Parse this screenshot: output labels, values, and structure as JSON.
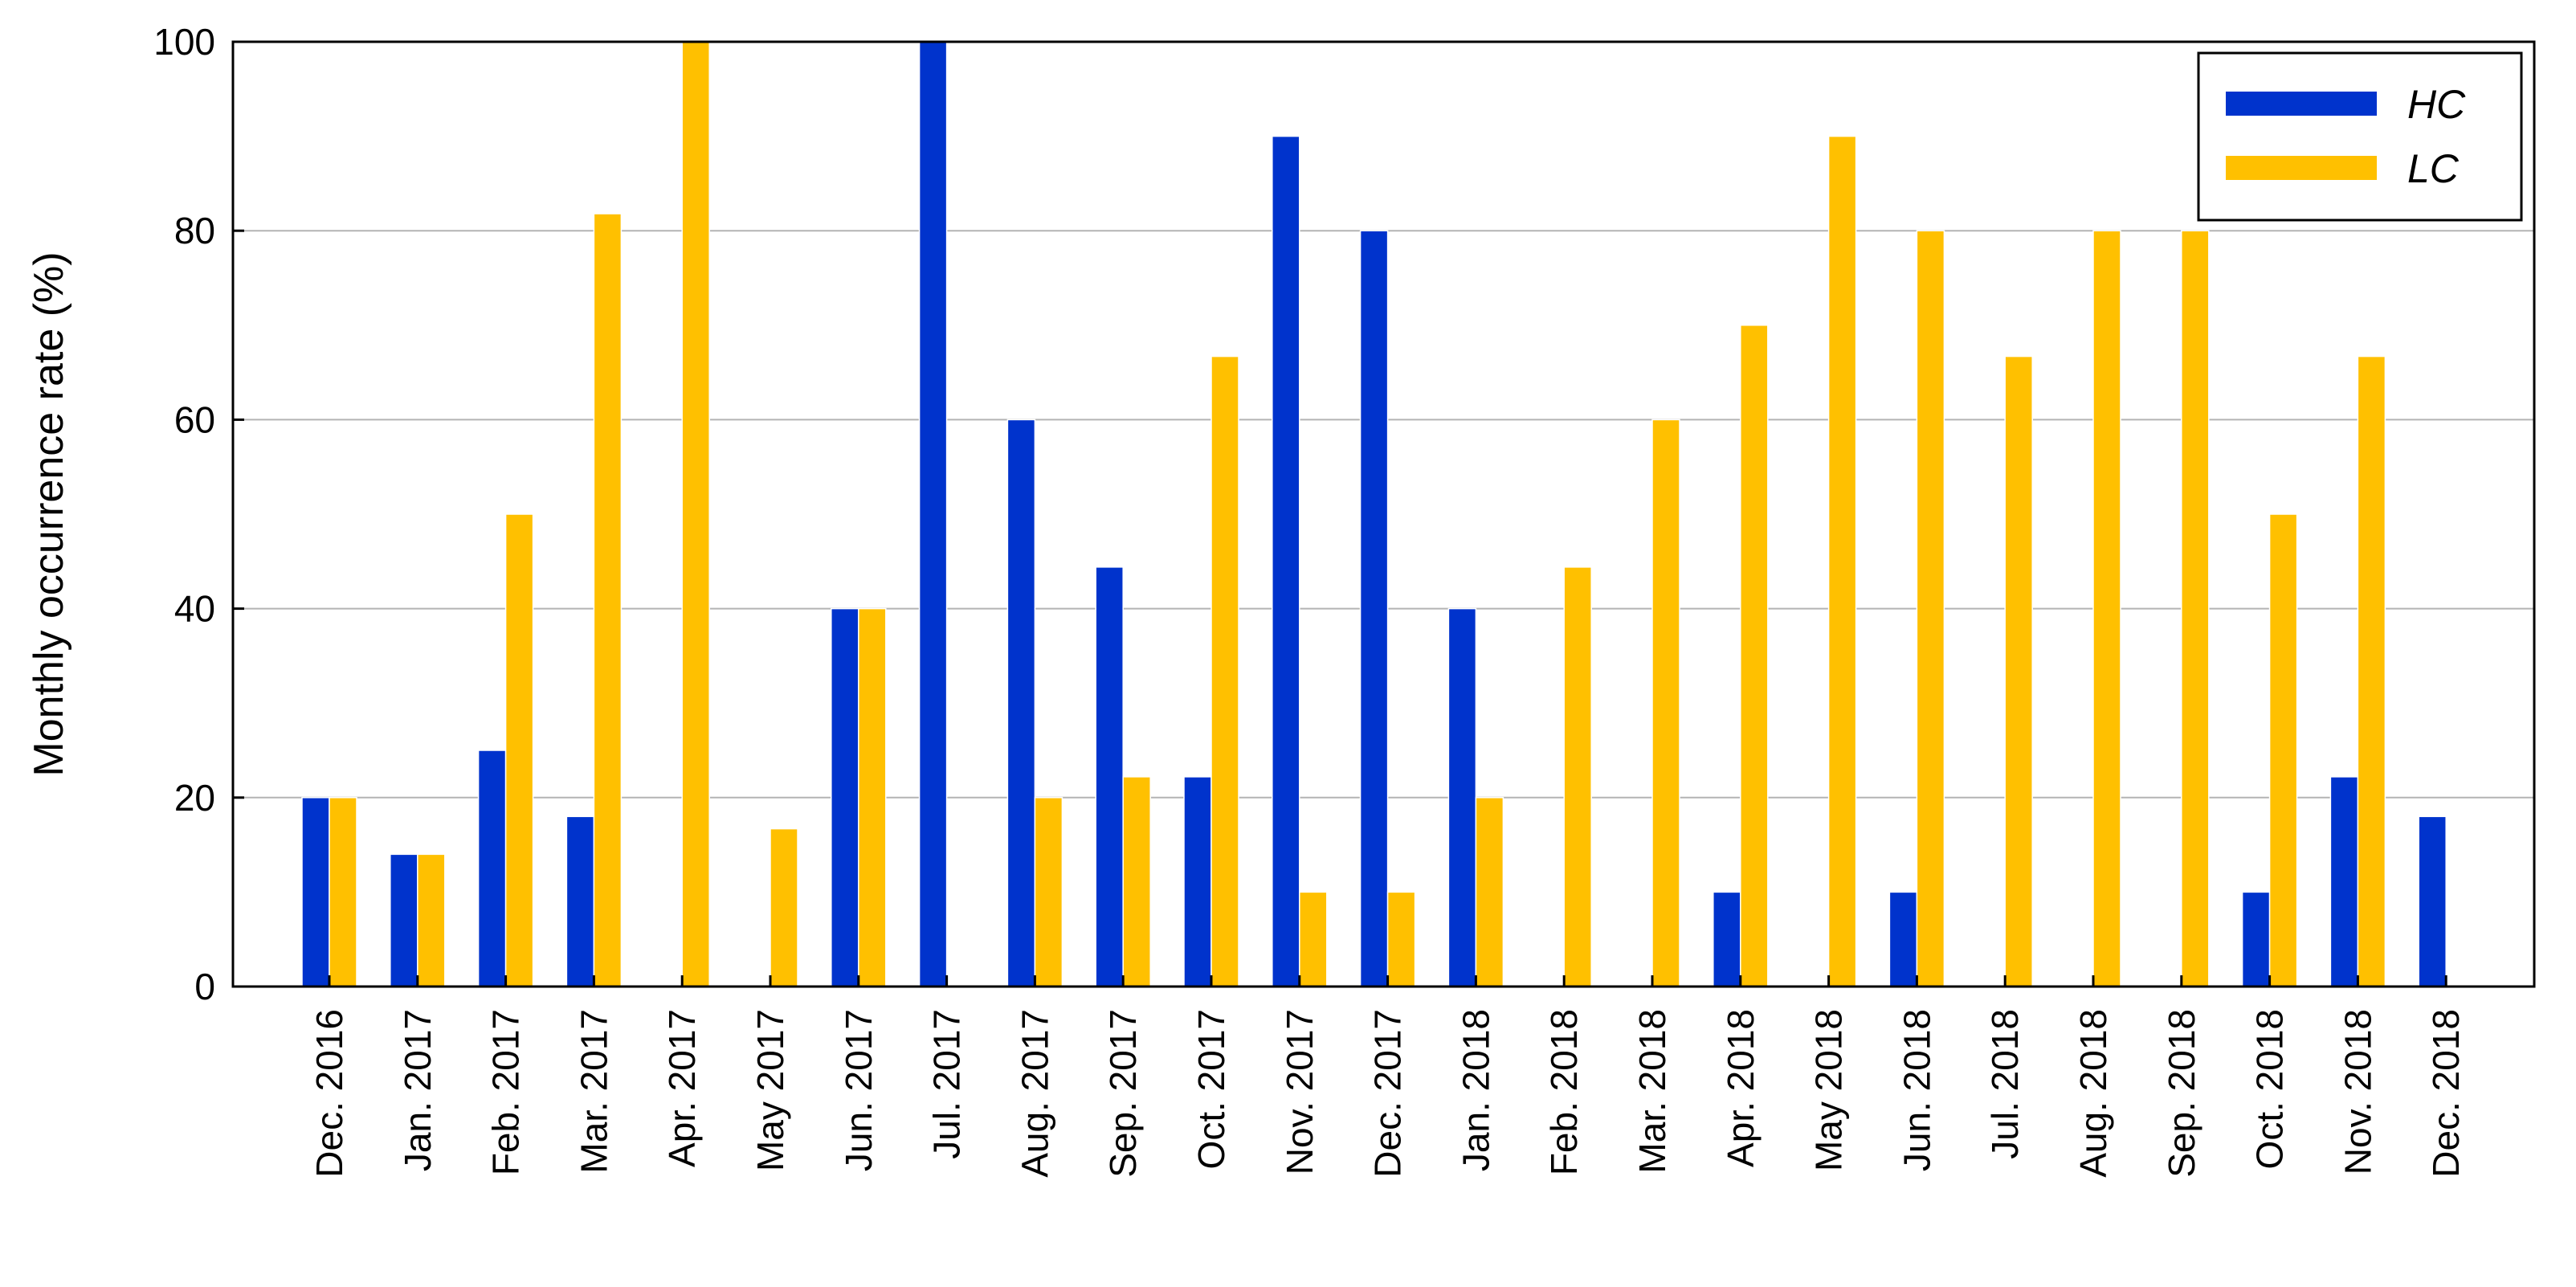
{
  "chart_data": {
    "type": "bar",
    "title": "",
    "xlabel": "",
    "ylabel": "Monthly occurrence rate (%)",
    "ylim": [
      0,
      100
    ],
    "yticks": [
      0,
      20,
      40,
      60,
      80,
      100
    ],
    "grid": "horizontal",
    "legend_position": "top-right",
    "categories": [
      "Dec. 2016",
      "Jan. 2017",
      "Feb. 2017",
      "Mar. 2017",
      "Apr. 2017",
      "May 2017",
      "Jun. 2017",
      "Jul. 2017",
      "Aug. 2017",
      "Sep. 2017",
      "Oct. 2017",
      "Nov. 2017",
      "Dec. 2017",
      "Jan. 2018",
      "Feb. 2018",
      "Mar. 2018",
      "Apr. 2018",
      "May 2018",
      "Jun. 2018",
      "Jul. 2018",
      "Aug. 2018",
      "Sep. 2018",
      "Oct. 2018",
      "Nov. 2018",
      "Dec. 2018"
    ],
    "series": [
      {
        "name": "HC",
        "color": "#0033cc",
        "values": [
          20,
          14,
          25,
          18,
          0,
          0,
          40,
          100,
          60,
          44.4,
          22.2,
          90,
          80,
          40,
          0,
          0,
          10,
          0,
          10,
          0,
          0,
          0,
          10,
          22.2,
          18
        ]
      },
      {
        "name": "LC",
        "color": "#ffc000",
        "values": [
          20,
          14,
          50,
          81.8,
          100,
          16.7,
          40,
          0,
          20,
          22.2,
          66.7,
          10,
          10,
          20,
          44.4,
          60,
          70,
          90,
          80,
          66.7,
          80,
          80,
          50,
          66.7,
          0
        ]
      }
    ]
  }
}
